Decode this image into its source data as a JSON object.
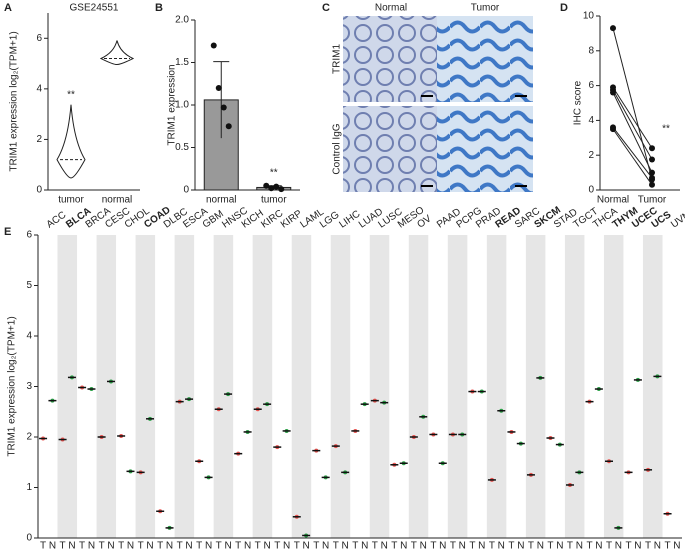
{
  "chart_data": [
    {
      "type": "violin",
      "panel": "A",
      "title": "GSE24551",
      "y_label": "TRIM1 expression log₂(TPM+1)",
      "categories": [
        "tumor",
        "normal"
      ],
      "values": [
        1.2,
        5.2
      ],
      "color": "#ffffff",
      "ylim": [
        0,
        7
      ],
      "yticks": [
        0,
        2,
        4,
        6
      ],
      "annotations": [
        "**"
      ]
    },
    {
      "type": "bar",
      "panel": "B",
      "y_label": "TRIM1 expression",
      "categories": [
        "normal",
        "tumor"
      ],
      "values": [
        1.06,
        0.03
      ],
      "errors": [
        0.45,
        0.02
      ],
      "points": [
        [
          1.7,
          1.2,
          0.97,
          0.75
        ],
        [
          0.05,
          0.02,
          0.04,
          0.01
        ]
      ],
      "color": "#999999",
      "ylim": [
        0,
        2
      ],
      "yticks": [
        0,
        0.5,
        {
          "value": 1,
          "label": "1.0"
        },
        1.5,
        {
          "value": 2,
          "label": "2.0"
        }
      ],
      "annotations": [
        "**"
      ]
    },
    {
      "type": "paired",
      "panel": "D",
      "y_label": "IHC score",
      "categories": [
        "Normal",
        "Tumor"
      ],
      "pairs": [
        [
          9.3,
          0.6
        ],
        [
          5.9,
          2.4
        ],
        [
          5.75,
          1.75
        ],
        [
          5.6,
          1.0
        ],
        [
          3.6,
          0.7
        ],
        [
          3.5,
          0.3
        ]
      ],
      "ylim": [
        0,
        10
      ],
      "yticks": [
        0,
        2,
        4,
        6,
        8,
        10
      ],
      "annotations": [
        "**"
      ]
    },
    {
      "type": "median-dot",
      "panel": "E",
      "y_label": "TRIM1 expression log₂(TPM+1)",
      "categories": [
        "ACC",
        "BLCA",
        "BRCA",
        "CESC",
        "CHOL",
        "COAD",
        "DLBC",
        "ESCA",
        "GBM",
        "HNSC",
        "KICH",
        "KIRC",
        "KIRP",
        "LAML",
        "LGG",
        "LIHC",
        "LUAD",
        "LUSC",
        "MESO",
        "OV",
        "PAAD",
        "PCPG",
        "PRAD",
        "READ",
        "SARC",
        "SKCM",
        "STAD",
        "TGCT",
        "THCA",
        "THYM",
        "UCEC",
        "UCS",
        "UVM"
      ],
      "category_colors": [
        "#222",
        "#2aa046",
        "#222",
        "#222",
        "#222",
        "#2aa046",
        "#222",
        "#222",
        "#222",
        "#222",
        "#222",
        "#222",
        "#222",
        "#222",
        "#222",
        "#222",
        "#222",
        "#222",
        "#222",
        "#222",
        "#222",
        "#222",
        "#222",
        "#2aa046",
        "#222",
        "#2aa046",
        "#222",
        "#222",
        "#222",
        "#e8302a",
        "#2aa046",
        "#2aa046",
        "#222"
      ],
      "series": [
        {
          "name": "T",
          "color": "#e8534f",
          "values": [
            1.97,
            1.95,
            2.98,
            2.0,
            2.02,
            1.3,
            0.53,
            2.7,
            1.52,
            2.55,
            1.67,
            2.55,
            1.8,
            0.42,
            1.73,
            1.82,
            2.12,
            2.72,
            1.45,
            2.0,
            2.05,
            2.05,
            2.9,
            1.15,
            2.1,
            1.25,
            1.98,
            1.05,
            2.7,
            1.52,
            1.3,
            1.35,
            0.48
          ]
        },
        {
          "name": "N",
          "color": "#2aa046",
          "values": [
            2.72,
            3.18,
            2.95,
            3.1,
            1.32,
            2.36,
            0.2,
            2.75,
            1.2,
            2.85,
            2.1,
            2.65,
            2.12,
            0.05,
            1.2,
            1.3,
            2.65,
            2.68,
            1.48,
            2.4,
            1.48,
            2.05,
            2.9,
            2.52,
            1.87,
            3.17,
            1.85,
            1.3,
            2.95,
            0.2,
            3.13,
            3.2,
            null
          ]
        }
      ],
      "ylim": [
        0,
        6
      ],
      "yticks": [
        0,
        1,
        2,
        3,
        4,
        5,
        6
      ]
    }
  ],
  "image_panel": {
    "panel": "C",
    "columns": [
      "Normal",
      "Tumor"
    ],
    "rows": [
      "TRIM1",
      "Control IgG"
    ]
  }
}
